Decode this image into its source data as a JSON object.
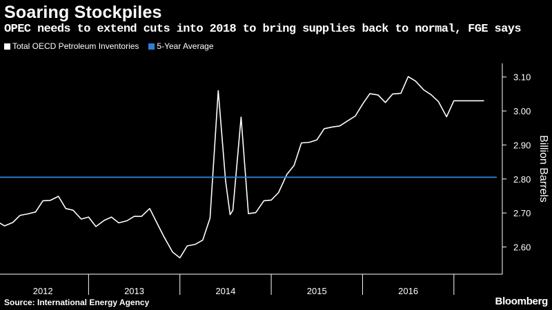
{
  "header": {
    "title": "Soaring Stockpiles",
    "subtitle": "OPEC needs to extend cuts into 2018 to bring supplies back to normal, FGE says"
  },
  "legend": [
    {
      "label": "Total OECD Petroleum Inventories",
      "color": "#ffffff"
    },
    {
      "label": "5-Year Average",
      "color": "#2f7fd6"
    }
  ],
  "footer": {
    "source": "Source: International Energy Agency",
    "brand": "Bloomberg"
  },
  "chart_data": {
    "type": "line",
    "title": "Soaring Stockpiles",
    "subtitle": "OPEC needs to extend cuts into 2018 to bring supplies back to normal, FGE says",
    "xlabel": "",
    "ylabel": "Billion Barrels",
    "x_categories": [
      "2012",
      "2013",
      "2014",
      "2015",
      "2016"
    ],
    "xlim": [
      2011.5,
      2017.0
    ],
    "ylim": [
      2.52,
      3.14
    ],
    "y_ticks": [
      2.6,
      2.7,
      2.8,
      2.9,
      3.0,
      3.1
    ],
    "y_tick_labels": [
      "2.60",
      "2.70",
      "2.80",
      "2.90",
      "3.00",
      "3.10"
    ],
    "grid": false,
    "legend_position": "top-left",
    "series": [
      {
        "name": "Total OECD Petroleum Inventories",
        "color": "#ffffff",
        "x": [
          2011.5,
          2011.58,
          2011.67,
          2011.75,
          2011.83,
          2011.92,
          2012.0,
          2012.08,
          2012.17,
          2012.25,
          2012.33,
          2012.42,
          2012.5,
          2012.58,
          2012.67,
          2012.75,
          2012.83,
          2012.92,
          2013.0,
          2013.08,
          2013.17,
          2013.25,
          2013.33,
          2013.42,
          2013.5,
          2013.58,
          2013.67,
          2013.75,
          2013.83,
          2013.92,
          2014.0,
          2014.05,
          2014.08,
          2014.17,
          2014.25,
          2014.33,
          2014.42,
          2014.5,
          2014.58,
          2014.67,
          2014.75,
          2014.83,
          2014.92,
          2015.0,
          2015.08,
          2015.17,
          2015.25,
          2015.33,
          2015.42,
          2015.5,
          2015.58,
          2015.67,
          2015.75,
          2015.83,
          2015.92,
          2016.0,
          2016.08,
          2016.17,
          2016.25,
          2016.33,
          2016.42,
          2016.5,
          2016.58,
          2016.67,
          2016.75,
          2016.83
        ],
        "y": [
          2.675,
          2.662,
          2.672,
          2.693,
          2.697,
          2.703,
          2.736,
          2.737,
          2.749,
          2.713,
          2.708,
          2.682,
          2.688,
          2.66,
          2.678,
          2.688,
          2.671,
          2.677,
          2.69,
          2.69,
          2.713,
          2.67,
          2.628,
          2.585,
          2.568,
          2.603,
          2.608,
          2.62,
          2.685,
          3.06,
          2.795,
          2.695,
          2.708,
          2.982,
          2.698,
          2.701,
          2.736,
          2.738,
          2.76,
          2.813,
          2.84,
          2.906,
          2.908,
          2.915,
          2.948,
          2.953,
          2.956,
          2.97,
          2.985,
          3.02,
          3.051,
          3.047,
          3.025,
          3.05,
          3.052,
          3.101,
          3.088,
          3.062,
          3.048,
          3.028,
          2.983,
          3.03,
          3.03,
          3.03,
          3.03,
          3.03
        ]
      },
      {
        "name": "5-Year Average",
        "color": "#2f7fd6",
        "x": [
          2011.5,
          2016.97
        ],
        "y": [
          2.805,
          2.805
        ]
      }
    ]
  }
}
